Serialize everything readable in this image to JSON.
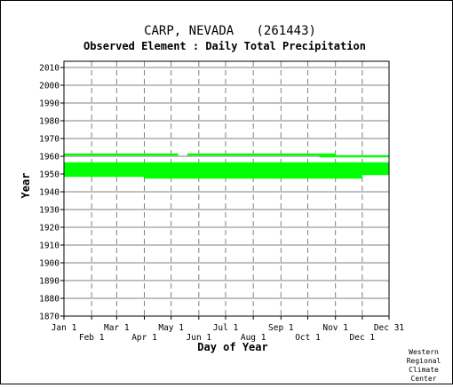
{
  "title": "CARP, NEVADA   (261443)",
  "subtitle": "Observed Element : Daily Total Precipitation",
  "credit": [
    "Western",
    "Regional",
    "Climate",
    "Center"
  ],
  "colors": {
    "record": "#00ff00",
    "grid": "#808080",
    "axis": "#000000"
  },
  "chart_data": {
    "type": "area",
    "xlabel": "Day of Year",
    "ylabel": "Year",
    "xlim": [
      1,
      365
    ],
    "ylim": [
      1870,
      2012
    ],
    "grid": true,
    "x_ticks_top": [
      {
        "label": "Jan 1",
        "day": 1
      },
      {
        "label": "Mar 1",
        "day": 60
      },
      {
        "label": "May 1",
        "day": 121
      },
      {
        "label": "Jul 1",
        "day": 182
      },
      {
        "label": "Sep 1",
        "day": 244
      },
      {
        "label": "Nov 1",
        "day": 305
      },
      {
        "label": "Dec 31",
        "day": 365
      }
    ],
    "x_ticks_bottom": [
      {
        "label": "Feb 1",
        "day": 32
      },
      {
        "label": "Apr 1",
        "day": 91
      },
      {
        "label": "Jun 1",
        "day": 152
      },
      {
        "label": "Aug 1",
        "day": 213
      },
      {
        "label": "Oct 1",
        "day": 274
      },
      {
        "label": "Dec 1",
        "day": 335
      }
    ],
    "y_ticks": [
      2010,
      2000,
      1990,
      1980,
      1970,
      1960,
      1950,
      1940,
      1930,
      1920,
      1910,
      1900,
      1890,
      1880,
      1870
    ],
    "series": [
      {
        "segments": [
          {
            "year": 1961,
            "start_day": 1,
            "end_day": 129
          },
          {
            "year": 1961,
            "start_day": 139,
            "end_day": 287
          },
          {
            "year": 1961,
            "start_day": 287,
            "end_day": 305
          },
          {
            "year": 1960,
            "start_day": 287,
            "end_day": 365
          },
          {
            "year": 1956,
            "start_day": 1,
            "end_day": 365
          },
          {
            "year": 1955,
            "start_day": 1,
            "end_day": 365
          },
          {
            "year": 1954,
            "start_day": 1,
            "end_day": 365
          },
          {
            "year": 1953,
            "start_day": 1,
            "end_day": 365
          },
          {
            "year": 1952,
            "start_day": 1,
            "end_day": 365
          },
          {
            "year": 1951,
            "start_day": 1,
            "end_day": 365
          },
          {
            "year": 1950,
            "start_day": 1,
            "end_day": 365
          },
          {
            "year": 1949,
            "start_day": 1,
            "end_day": 335
          },
          {
            "year": 1948,
            "start_day": 91,
            "end_day": 335
          }
        ]
      }
    ]
  }
}
